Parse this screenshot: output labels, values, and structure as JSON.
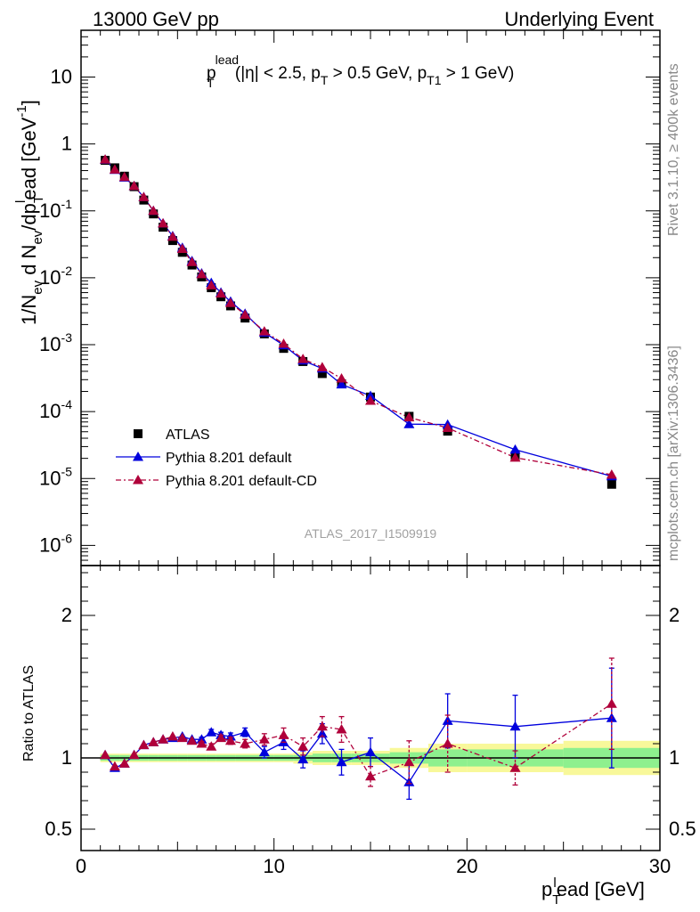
{
  "header": {
    "left": "13000 GeV pp",
    "right": "Underlying Event"
  },
  "side_labels": {
    "rivet": "Rivet 3.1.10, ≥ 400k events",
    "mcplots": "mcplots.cern.ch [arXiv:1306.3436]"
  },
  "analysis_id": "ATLAS_2017_I1509919",
  "plot_title": {
    "p": "p",
    "sup_lead": "lead",
    "sub_T": "T",
    "rest1": " (|η| < 2.5, p",
    "sub_T2": "T",
    "rest2": " > 0.5 GeV, p",
    "sub_T1": "T1",
    "rest3": " > 1 GeV)"
  },
  "y_label": {
    "a": "1/N",
    "sub_ev": "ev",
    "b": " d N",
    "sub_ev2": "ev",
    "c": "/dp",
    "sub_T": "T",
    "sup_l": "l",
    "d": "ead [GeV",
    "sup_m1": "-1",
    "e": "]"
  },
  "x_label": {
    "p": "p",
    "sub_T": "T",
    "sup_l": "l",
    "rest": "ead [GeV]"
  },
  "ratio_label": "Ratio to ATLAS",
  "colors": {
    "data": "#000000",
    "default": "#0000dd",
    "default_cd": "#b0003a",
    "band_inner": "#8ef08e",
    "band_outer": "#f8f89a"
  },
  "chart_data": [
    {
      "type": "scatter",
      "panel": "main",
      "log_y": true,
      "xlim": [
        0,
        30
      ],
      "ylim": [
        5e-07,
        50
      ],
      "x_ticks": [
        "0",
        "10",
        "20",
        "30"
      ],
      "y_ticks": [
        {
          "mant": "10",
          "exp": "-6"
        },
        {
          "mant": "10",
          "exp": "-5"
        },
        {
          "mant": "10",
          "exp": "-4"
        },
        {
          "mant": "10",
          "exp": "-3"
        },
        {
          "mant": "10",
          "exp": "-2"
        },
        {
          "mant": "10",
          "exp": "-1"
        },
        {
          "mant": "1",
          "exp": ""
        },
        {
          "mant": "10",
          "exp": ""
        }
      ],
      "x": [
        1.25,
        1.75,
        2.25,
        2.75,
        3.25,
        3.75,
        4.25,
        4.75,
        5.25,
        5.75,
        6.25,
        6.75,
        7.25,
        7.75,
        8.5,
        9.5,
        10.5,
        11.5,
        12.5,
        13.5,
        15,
        17,
        19,
        22.5,
        27.5
      ],
      "series": [
        {
          "name": "ATLAS",
          "marker": "square",
          "values": [
            0.57,
            0.44,
            0.33,
            0.23,
            0.145,
            0.09,
            0.057,
            0.036,
            0.024,
            0.0155,
            0.0103,
            0.0071,
            0.0052,
            0.0038,
            0.0025,
            0.00145,
            0.00088,
            0.00056,
            0.00037,
            0.00026,
            0.000165,
            8.5e-05,
            5.1e-05,
            2.2e-05,
            8.2e-06
          ]
        },
        {
          "name": "Pythia 8.201 default",
          "marker": "triangle",
          "line": "solid",
          "values": [
            0.58,
            0.41,
            0.315,
            0.235,
            0.16,
            0.1,
            0.065,
            0.042,
            0.028,
            0.0178,
            0.0116,
            0.0084,
            0.006,
            0.0044,
            0.0029,
            0.00152,
            0.00098,
            0.00058,
            0.00044,
            0.000255,
            0.000172,
            6.5e-05,
            6.4e-05,
            2.7e-05,
            1.08e-05
          ]
        },
        {
          "name": "Pythia 8.201 default-CD",
          "marker": "triangle",
          "line": "dashdot",
          "values": [
            0.585,
            0.415,
            0.32,
            0.235,
            0.16,
            0.1,
            0.065,
            0.041,
            0.027,
            0.0172,
            0.0113,
            0.0077,
            0.0058,
            0.0042,
            0.0028,
            0.00158,
            0.00103,
            0.00061,
            0.00046,
            0.000312,
            0.000145,
            8.2e-05,
            5.7e-05,
            2.05e-05,
            1.14e-05
          ]
        }
      ]
    },
    {
      "type": "scatter",
      "panel": "ratio",
      "xlim": [
        0,
        30
      ],
      "ylim": [
        0.35,
        2.35
      ],
      "y_ticks": [
        "0.5",
        "1",
        "2"
      ],
      "ylabel": "Ratio to ATLAS",
      "xlabel_note": "shared x axis with main panel",
      "x": [
        1.25,
        1.75,
        2.25,
        2.75,
        3.25,
        3.75,
        4.25,
        4.75,
        5.25,
        5.75,
        6.25,
        6.75,
        7.25,
        7.75,
        8.5,
        9.5,
        10.5,
        11.5,
        12.5,
        13.5,
        15,
        17,
        19,
        22.5,
        27.5
      ],
      "bands": {
        "bin_edges": [
          1,
          1.5,
          2,
          2.5,
          3,
          3.5,
          4,
          4.5,
          5,
          5.5,
          6,
          6.5,
          7,
          7.5,
          8,
          9,
          10,
          11,
          12,
          13,
          14,
          16,
          18,
          20,
          25,
          30
        ],
        "inner": [
          0.02,
          0.02,
          0.02,
          0.02,
          0.02,
          0.02,
          0.02,
          0.02,
          0.02,
          0.02,
          0.02,
          0.02,
          0.02,
          0.02,
          0.02,
          0.02,
          0.02,
          0.02,
          0.03,
          0.03,
          0.03,
          0.04,
          0.06,
          0.06,
          0.07
        ],
        "outer": [
          0.03,
          0.03,
          0.03,
          0.03,
          0.03,
          0.03,
          0.03,
          0.03,
          0.03,
          0.03,
          0.03,
          0.03,
          0.03,
          0.03,
          0.03,
          0.03,
          0.03,
          0.04,
          0.05,
          0.05,
          0.05,
          0.07,
          0.1,
          0.1,
          0.12
        ]
      },
      "series": [
        {
          "name": "Pythia 8.201 default",
          "marker": "triangle",
          "line": "solid",
          "values": [
            1.02,
            0.93,
            0.96,
            1.02,
            1.09,
            1.11,
            1.13,
            1.14,
            1.15,
            1.13,
            1.13,
            1.18,
            1.16,
            1.15,
            1.18,
            1.04,
            1.11,
            0.99,
            1.17,
            0.97,
            1.04,
            0.83,
            1.26,
            1.22,
            1.28
          ],
          "errors": [
            0.005,
            0.005,
            0.005,
            0.005,
            0.008,
            0.008,
            0.008,
            0.01,
            0.01,
            0.012,
            0.015,
            0.02,
            0.02,
            0.025,
            0.03,
            0.04,
            0.05,
            0.06,
            0.07,
            0.09,
            0.1,
            0.12,
            0.19,
            0.22,
            0.35
          ]
        },
        {
          "name": "Pythia 8.201 default-CD",
          "marker": "triangle",
          "line": "dashdot",
          "values": [
            1.02,
            0.94,
            0.96,
            1.02,
            1.09,
            1.11,
            1.13,
            1.15,
            1.14,
            1.12,
            1.1,
            1.08,
            1.14,
            1.12,
            1.1,
            1.13,
            1.16,
            1.08,
            1.22,
            1.2,
            0.87,
            0.97,
            1.1,
            0.93,
            1.38
          ],
          "errors": [
            0.005,
            0.005,
            0.005,
            0.005,
            0.008,
            0.008,
            0.008,
            0.01,
            0.01,
            0.012,
            0.015,
            0.02,
            0.02,
            0.025,
            0.03,
            0.04,
            0.05,
            0.06,
            0.07,
            0.09,
            0.07,
            0.15,
            0.2,
            0.12,
            0.32
          ]
        }
      ]
    }
  ]
}
